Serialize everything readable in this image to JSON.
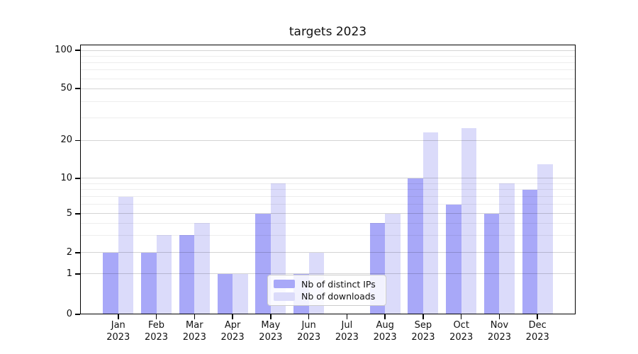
{
  "figure": {
    "title": "targets 2023"
  },
  "chart_data": {
    "type": "bar",
    "title": "targets 2023",
    "categories": [
      "Jan 2023",
      "Feb 2023",
      "Mar 2023",
      "Apr 2023",
      "May 2023",
      "Jun 2023",
      "Jul 2023",
      "Aug 2023",
      "Sep 2023",
      "Oct 2023",
      "Nov 2023",
      "Dec 2023"
    ],
    "x": {
      "months": [
        "Jan",
        "Feb",
        "Mar",
        "Apr",
        "May",
        "Jun",
        "Jul",
        "Aug",
        "Sep",
        "Oct",
        "Nov",
        "Dec"
      ],
      "year": "2023"
    },
    "series": [
      {
        "name": "Nb of distinct IPs",
        "color": "#a8a8f8",
        "values": [
          2,
          2,
          3,
          1,
          5,
          1,
          0,
          4,
          10,
          6,
          5,
          8
        ]
      },
      {
        "name": "Nb of downloads",
        "color": "#dbdbfa",
        "values": [
          7,
          3,
          4,
          1,
          9,
          2,
          0,
          5,
          23,
          25,
          9,
          13
        ]
      }
    ],
    "xlabel": "",
    "ylabel": "",
    "y_axis": {
      "scale": "symlog-like",
      "tick_values": [
        0,
        1,
        2,
        5,
        10,
        20,
        50,
        100
      ],
      "tick_labels": [
        "0",
        "1",
        "2",
        "5",
        "10",
        "20",
        "50",
        "100"
      ],
      "major_gridlines": [
        1,
        2,
        5,
        10,
        20,
        50,
        100
      ],
      "minor_gridlines": [
        3,
        4,
        6,
        7,
        8,
        9,
        30,
        40,
        60,
        70,
        80,
        90
      ],
      "anchors_frac": [
        [
          0,
          0
        ],
        [
          1,
          0.1501
        ],
        [
          2,
          0.2289
        ],
        [
          5,
          0.3732
        ],
        [
          10,
          0.5045
        ],
        [
          20,
          0.6444
        ],
        [
          50,
          0.8367
        ],
        [
          100,
          0.9785
        ]
      ]
    },
    "grid": "on",
    "legend": {
      "position": "lower-center",
      "entries": [
        "Nb of distinct IPs",
        "Nb of downloads"
      ]
    }
  }
}
